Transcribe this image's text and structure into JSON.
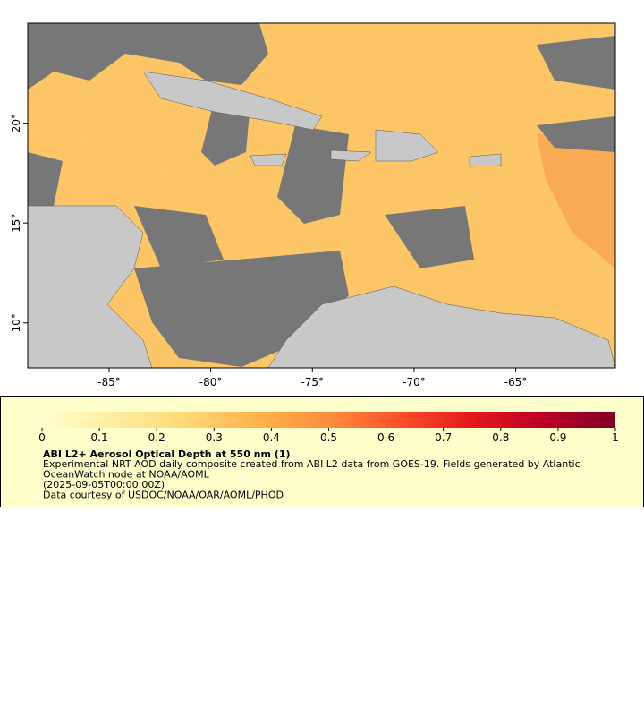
{
  "map": {
    "xlim": [
      -89,
      -60.1
    ],
    "ylim": [
      7.75,
      25
    ],
    "xticks": [
      {
        "value": -85,
        "label": "-85°"
      },
      {
        "value": -80,
        "label": "-80°"
      },
      {
        "value": -75,
        "label": "-75°"
      },
      {
        "value": -70,
        "label": "-70°"
      },
      {
        "value": -65,
        "label": "-65°"
      }
    ],
    "yticks": [
      {
        "value": 10,
        "label": "10°"
      },
      {
        "value": 15,
        "label": "15°"
      },
      {
        "value": 20,
        "label": "20°"
      }
    ]
  },
  "colorbar": {
    "lim": [
      0,
      1
    ],
    "ticks": [
      0,
      0.1,
      0.2,
      0.3,
      0.4,
      0.5,
      0.6,
      0.7,
      0.8,
      0.9,
      1
    ],
    "colors": [
      "#ffffcc",
      "#ffeda0",
      "#fed976",
      "#feb24c",
      "#fd8d3c",
      "#fc4e2a",
      "#e31a1c",
      "#bd0026",
      "#800026"
    ]
  },
  "legend": {
    "title": "ABI L2+ Aerosol Optical Depth at 550 nm (1)",
    "lines": [
      "Experimental NRT AOD daily composite created from ABI L2 data from GOES-19. Fields generated by Atlantic",
      "OceanWatch node at NOAA/AOML",
      "(2025-09-05T00:00:00Z)",
      "Data courtesy of USDOC/NOAA/OAR/AOML/PHOD"
    ]
  }
}
